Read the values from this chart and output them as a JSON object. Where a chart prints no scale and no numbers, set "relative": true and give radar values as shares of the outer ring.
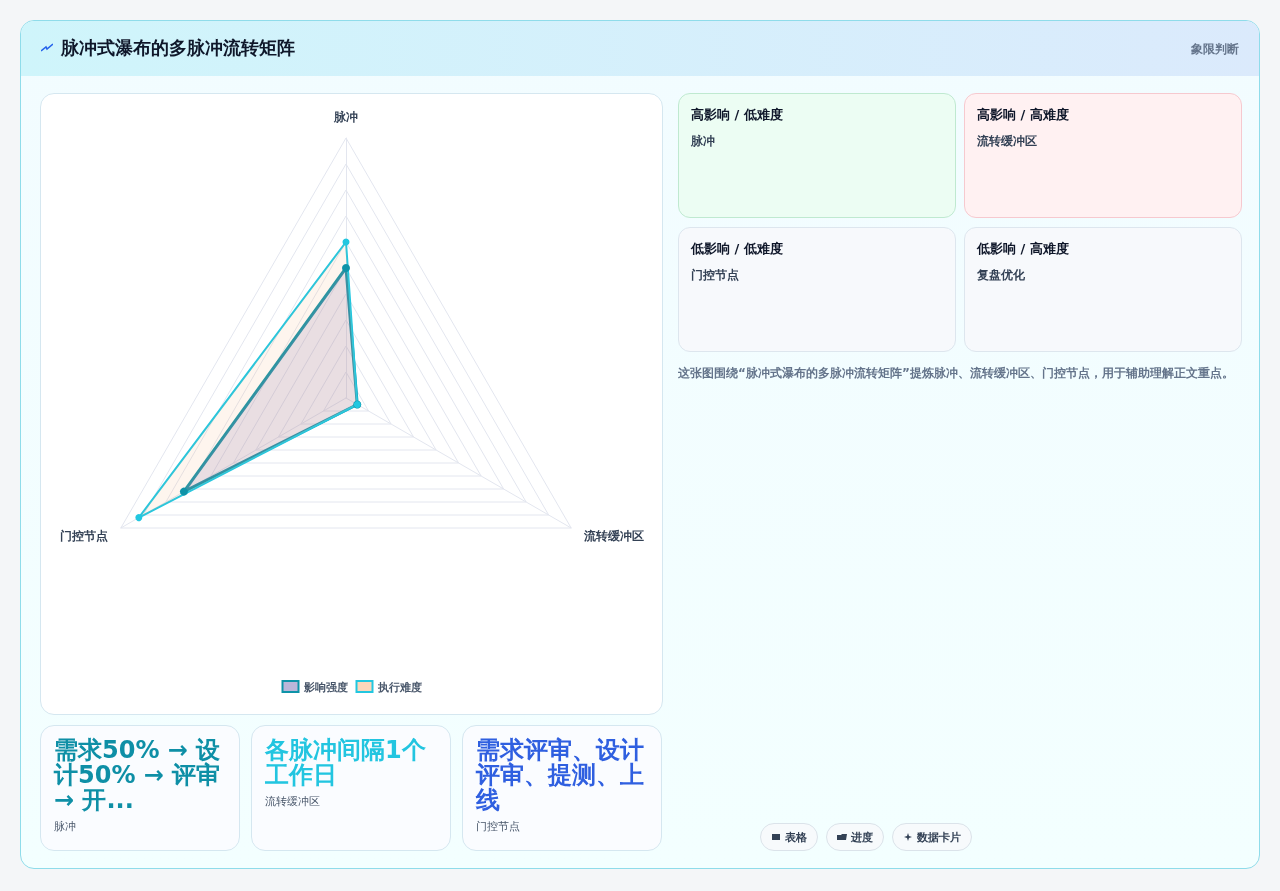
{
  "chart_data": [
    {
      "type": "radar",
      "title": "脉冲式瀑布的多脉冲流转矩阵",
      "categories": [
        "脉冲",
        "流转缓冲区",
        "门控节点"
      ],
      "relative": true,
      "legend": "bottom",
      "marker": "circle",
      "series": [
        {
          "name": "影响强度",
          "color": "#0e93a8",
          "values": [
            0.5,
            0.05,
            0.72
          ]
        },
        {
          "name": "执行难度",
          "color": "#22c7e0",
          "values": [
            0.6,
            0.05,
            0.92
          ]
        }
      ]
    },
    {
      "type": "other",
      "title": "象限判断",
      "annotations": [
        "高影响 / 低难度",
        "脉冲",
        "高影响 / 高难度",
        "流转缓冲区",
        "低影响 / 低难度",
        "门控节点",
        "低影响 / 高难度",
        "复盘优化",
        "这张图围绕“脉冲式瀑布的多脉冲流转矩阵”提炼脉冲、流转缓冲区、门控节点，用于辅助理解正文重点。"
      ]
    },
    {
      "type": "other",
      "annotations": [
        "需求50% → 设计50% → 评审 → 开...",
        "脉冲",
        "各脉冲间隔1个工作日",
        "流转缓冲区",
        "需求评审、设计评审、提测、上线",
        "门控节点"
      ]
    },
    {
      "type": "other",
      "annotations": [
        "表格",
        "进度",
        "数据卡片"
      ]
    }
  ]
}
